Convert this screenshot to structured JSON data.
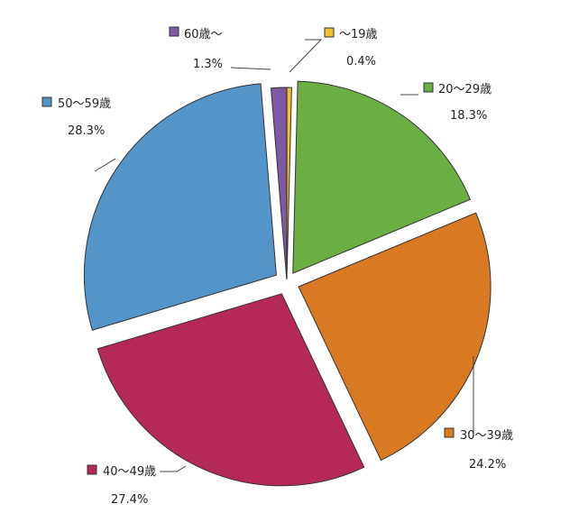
{
  "chart_data": {
    "type": "pie",
    "title": "",
    "categories": [
      "～19歳",
      "20～29歳",
      "30～39歳",
      "40～49歳",
      "50～59歳",
      "60歳～"
    ],
    "values": [
      0.4,
      18.3,
      24.2,
      27.4,
      28.3,
      1.3
    ],
    "value_labels": [
      "0.4%",
      "18.3%",
      "24.2%",
      "27.4%",
      "28.3%",
      "1.3%"
    ],
    "colors": [
      "#f2c12e",
      "#6aae44",
      "#d97a22",
      "#b5295a",
      "#5495c9",
      "#7e5aa6"
    ],
    "exploded": true,
    "start_angle_deg": 0,
    "direction": "clockwise",
    "legend": "none"
  }
}
